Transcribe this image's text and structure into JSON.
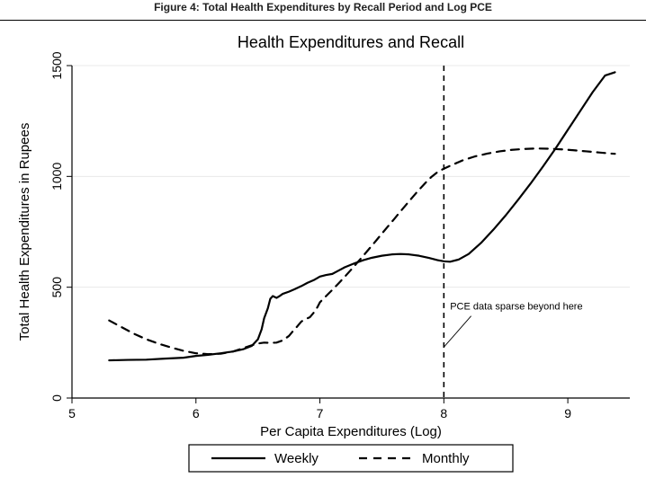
{
  "caption": "Figure 4: Total Health Expenditures by Recall Period and Log PCE",
  "chart": {
    "type": "line",
    "title": "Health Expenditures and Recall",
    "title_fontsize": 18,
    "xlabel": "Per Capita Expenditures (Log)",
    "ylabel": "Total Health Expenditures in Rupees",
    "label_fontsize": 15,
    "tick_fontsize": 14,
    "background_color": "#ffffff",
    "plot_background": "#ffffff",
    "axis_color": "#000000",
    "grid_color": "#e8e8e8",
    "xlim": [
      5,
      9.5
    ],
    "ylim": [
      0,
      1500
    ],
    "xticks": [
      5,
      6,
      7,
      8,
      9
    ],
    "yticks": [
      0,
      500,
      1000,
      1500
    ],
    "vline_x": 8,
    "vline_dash": "6,5",
    "annotation": {
      "text": "PCE data sparse beyond here",
      "fontsize": 11,
      "x_text": 8.05,
      "y_text": 400,
      "x_end": 8.0,
      "y_end": 230,
      "x_start": 8.22,
      "y_start": 370
    },
    "legend": {
      "items": [
        {
          "label": "Weekly",
          "dash": "none",
          "width": 2.2
        },
        {
          "label": "Monthly",
          "dash": "9,7",
          "width": 2.2
        }
      ],
      "fontsize": 15
    },
    "series": [
      {
        "name": "Weekly",
        "color": "#000000",
        "width": 2.2,
        "dash": "none",
        "points": [
          [
            5.3,
            170
          ],
          [
            5.45,
            172
          ],
          [
            5.6,
            173
          ],
          [
            5.75,
            178
          ],
          [
            5.9,
            182
          ],
          [
            6.0,
            190
          ],
          [
            6.1,
            195
          ],
          [
            6.2,
            202
          ],
          [
            6.3,
            210
          ],
          [
            6.38,
            220
          ],
          [
            6.45,
            235
          ],
          [
            6.5,
            265
          ],
          [
            6.53,
            310
          ],
          [
            6.55,
            360
          ],
          [
            6.58,
            405
          ],
          [
            6.6,
            448
          ],
          [
            6.62,
            460
          ],
          [
            6.65,
            452
          ],
          [
            6.68,
            462
          ],
          [
            6.7,
            470
          ],
          [
            6.75,
            480
          ],
          [
            6.8,
            492
          ],
          [
            6.85,
            505
          ],
          [
            6.9,
            520
          ],
          [
            6.95,
            532
          ],
          [
            7.0,
            548
          ],
          [
            7.05,
            555
          ],
          [
            7.1,
            560
          ],
          [
            7.15,
            575
          ],
          [
            7.2,
            590
          ],
          [
            7.28,
            608
          ],
          [
            7.35,
            622
          ],
          [
            7.42,
            633
          ],
          [
            7.5,
            642
          ],
          [
            7.58,
            648
          ],
          [
            7.65,
            650
          ],
          [
            7.72,
            648
          ],
          [
            7.8,
            642
          ],
          [
            7.88,
            632
          ],
          [
            7.95,
            622
          ],
          [
            8.0,
            617
          ],
          [
            8.05,
            615
          ],
          [
            8.12,
            625
          ],
          [
            8.2,
            650
          ],
          [
            8.3,
            700
          ],
          [
            8.4,
            760
          ],
          [
            8.5,
            825
          ],
          [
            8.6,
            895
          ],
          [
            8.7,
            968
          ],
          [
            8.8,
            1045
          ],
          [
            8.9,
            1125
          ],
          [
            9.0,
            1210
          ],
          [
            9.1,
            1295
          ],
          [
            9.2,
            1380
          ],
          [
            9.3,
            1455
          ],
          [
            9.38,
            1470
          ]
        ]
      },
      {
        "name": "Monthly",
        "color": "#000000",
        "width": 2.2,
        "dash": "9,7",
        "points": [
          [
            5.3,
            350
          ],
          [
            5.4,
            320
          ],
          [
            5.5,
            290
          ],
          [
            5.6,
            265
          ],
          [
            5.7,
            245
          ],
          [
            5.8,
            228
          ],
          [
            5.9,
            213
          ],
          [
            6.0,
            202
          ],
          [
            6.1,
            198
          ],
          [
            6.2,
            200
          ],
          [
            6.3,
            210
          ],
          [
            6.38,
            225
          ],
          [
            6.45,
            238
          ],
          [
            6.5,
            246
          ],
          [
            6.55,
            250
          ],
          [
            6.6,
            249
          ],
          [
            6.65,
            250
          ],
          [
            6.7,
            260
          ],
          [
            6.75,
            280
          ],
          [
            6.78,
            300
          ],
          [
            6.82,
            325
          ],
          [
            6.85,
            345
          ],
          [
            6.88,
            355
          ],
          [
            6.92,
            365
          ],
          [
            6.95,
            385
          ],
          [
            6.98,
            410
          ],
          [
            7.0,
            432
          ],
          [
            7.05,
            460
          ],
          [
            7.1,
            488
          ],
          [
            7.15,
            517
          ],
          [
            7.2,
            547
          ],
          [
            7.25,
            578
          ],
          [
            7.3,
            610
          ],
          [
            7.35,
            642
          ],
          [
            7.4,
            675
          ],
          [
            7.45,
            708
          ],
          [
            7.5,
            742
          ],
          [
            7.55,
            775
          ],
          [
            7.6,
            808
          ],
          [
            7.65,
            842
          ],
          [
            7.7,
            875
          ],
          [
            7.75,
            908
          ],
          [
            7.8,
            940
          ],
          [
            7.85,
            970
          ],
          [
            7.9,
            998
          ],
          [
            7.95,
            1020
          ],
          [
            8.0,
            1035
          ],
          [
            8.08,
            1055
          ],
          [
            8.15,
            1072
          ],
          [
            8.25,
            1090
          ],
          [
            8.35,
            1103
          ],
          [
            8.45,
            1113
          ],
          [
            8.55,
            1120
          ],
          [
            8.65,
            1124
          ],
          [
            8.75,
            1126
          ],
          [
            8.85,
            1125
          ],
          [
            8.95,
            1122
          ],
          [
            9.05,
            1118
          ],
          [
            9.15,
            1113
          ],
          [
            9.25,
            1108
          ],
          [
            9.35,
            1103
          ],
          [
            9.38,
            1102
          ]
        ]
      }
    ]
  }
}
